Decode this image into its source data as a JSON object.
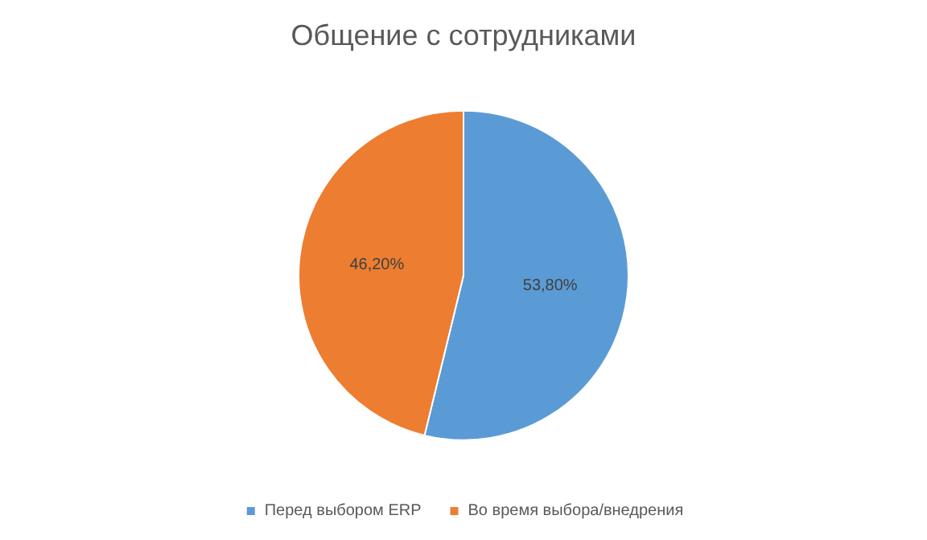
{
  "chart_data": {
    "type": "pie",
    "title": "Общение с сотрудниками",
    "categories": [
      "Перед выбором ERP",
      "Во время выбора/внедрения"
    ],
    "values": [
      53.8,
      46.2
    ],
    "colors": [
      "#5b9bd5",
      "#ed7d31"
    ],
    "value_labels": [
      "53,80%",
      "46,20%"
    ],
    "legend": "bottom"
  }
}
